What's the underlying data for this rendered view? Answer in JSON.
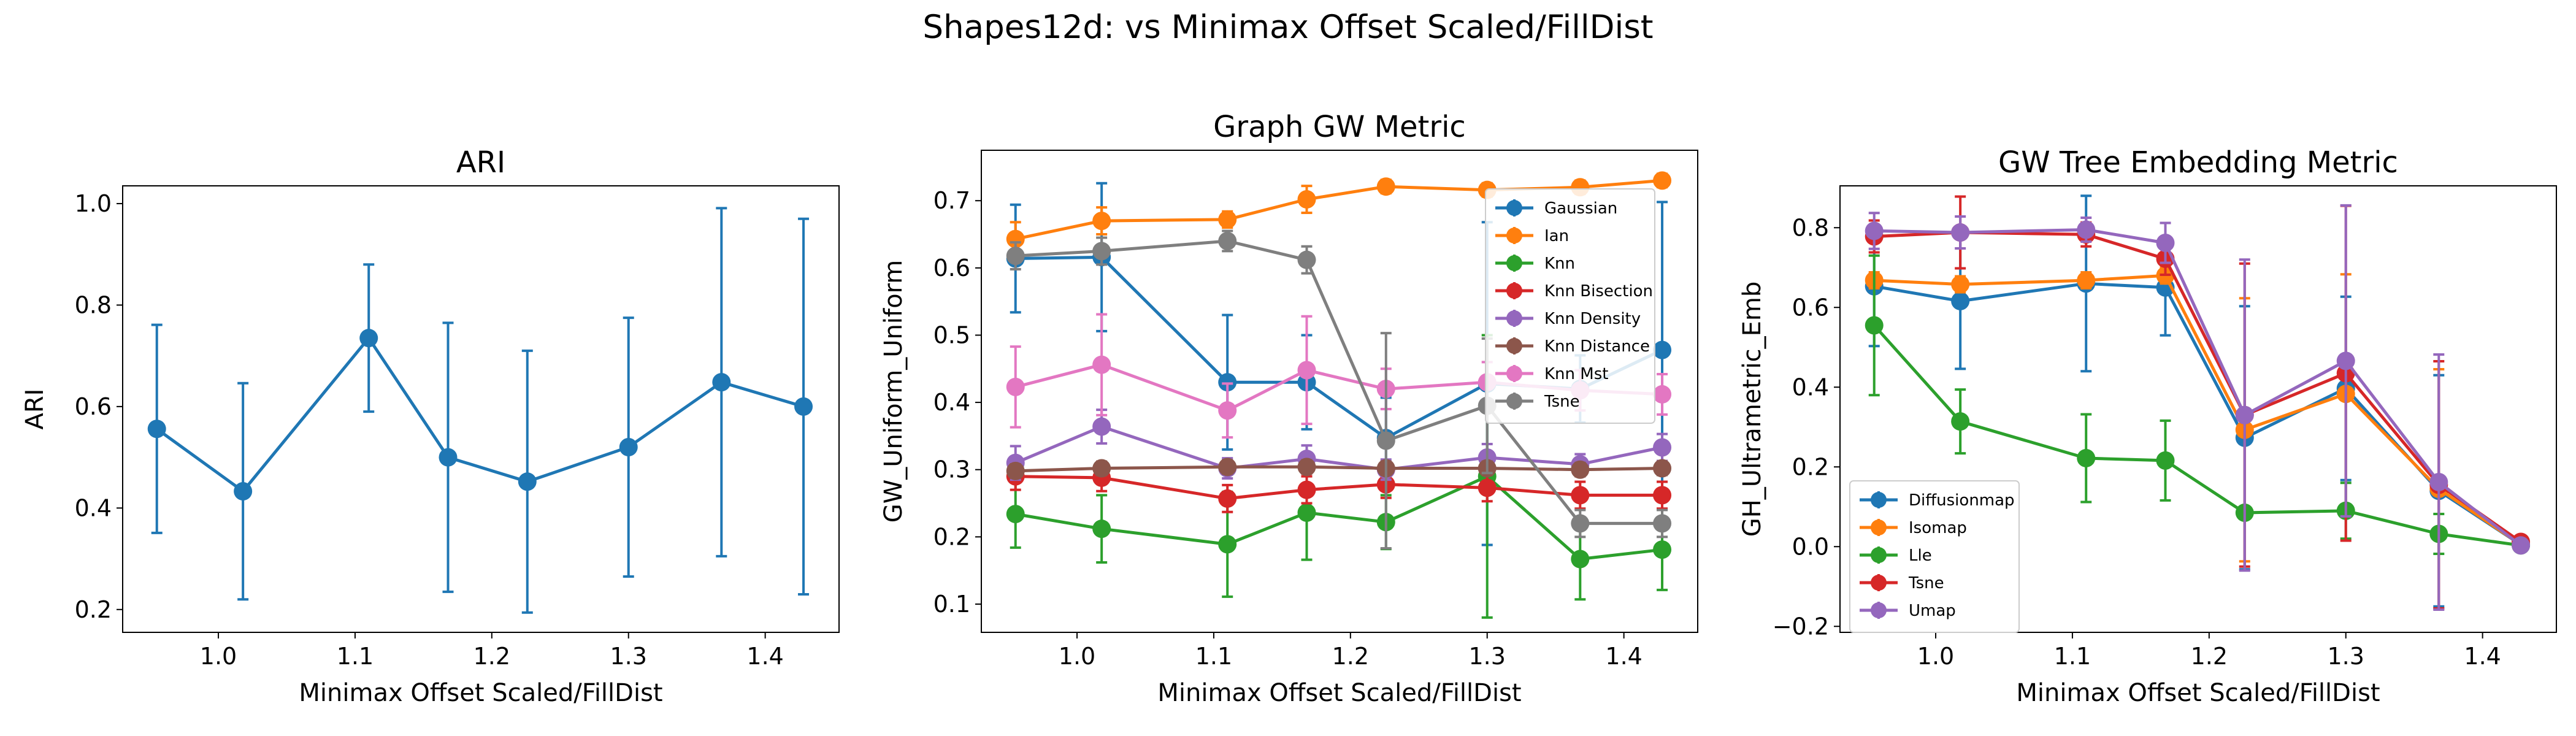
{
  "figure": {
    "suptitle": "Shapes12d: vs Minimax Offset Scaled/FillDist"
  },
  "chart_data": [
    {
      "type": "line",
      "title": "ARI",
      "xlabel": "Minimax Offset Scaled/FillDist",
      "ylabel": "ARI",
      "xlim": [
        0.93,
        1.454
      ],
      "ylim": [
        0.155,
        1.035
      ],
      "xticks": [
        1.0,
        1.1,
        1.2,
        1.3,
        1.4
      ],
      "yticks": [
        0.2,
        0.4,
        0.6,
        0.8,
        1.0
      ],
      "legend": "none",
      "x": [
        0.955,
        1.018,
        1.11,
        1.168,
        1.226,
        1.3,
        1.368,
        1.428
      ],
      "series": [
        {
          "color": "#1f77b4",
          "values": [
            0.556,
            0.433,
            0.735,
            0.5,
            0.452,
            0.52,
            0.648,
            0.6
          ],
          "errors": [
            0.205,
            0.213,
            0.145,
            0.265,
            0.258,
            0.255,
            0.343,
            0.37
          ]
        }
      ]
    },
    {
      "type": "line",
      "title": "Graph GW Metric",
      "xlabel": "Minimax Offset Scaled/FillDist",
      "ylabel": "GW_Uniform_Uniform",
      "xlim": [
        0.93,
        1.454
      ],
      "ylim": [
        0.058,
        0.775
      ],
      "xticks": [
        1.0,
        1.1,
        1.2,
        1.3,
        1.4
      ],
      "yticks": [
        0.1,
        0.2,
        0.3,
        0.4,
        0.5,
        0.6,
        0.7
      ],
      "legend": "top-right",
      "x": [
        0.955,
        1.018,
        1.11,
        1.168,
        1.226,
        1.3,
        1.368,
        1.428
      ],
      "series": [
        {
          "name": "Gaussian",
          "color": "#1f77b4",
          "values": [
            0.614,
            0.616,
            0.43,
            0.43,
            0.347,
            0.428,
            0.42,
            0.478
          ],
          "errors": [
            0.08,
            0.11,
            0.1,
            0.07,
            0.06,
            0.24,
            0.05,
            0.22
          ]
        },
        {
          "name": "Ian",
          "color": "#ff7f0e",
          "values": [
            0.643,
            0.67,
            0.672,
            0.702,
            0.721,
            0.716,
            0.72,
            0.73
          ],
          "errors": [
            0.025,
            0.02,
            0.012,
            0.02,
            0.01,
            0.01,
            0.01,
            0.01
          ]
        },
        {
          "name": "Knn",
          "color": "#2ca02c",
          "values": [
            0.234,
            0.212,
            0.189,
            0.236,
            0.222,
            0.29,
            0.167,
            0.181
          ],
          "errors": [
            0.05,
            0.05,
            0.078,
            0.07,
            0.04,
            0.21,
            0.06,
            0.06
          ]
        },
        {
          "name": "Knn Bisection",
          "color": "#d62728",
          "values": [
            0.29,
            0.288,
            0.257,
            0.27,
            0.278,
            0.273,
            0.262,
            0.262
          ],
          "errors": [
            0.02,
            0.02,
            0.02,
            0.02,
            0.02,
            0.02,
            0.02,
            0.02
          ]
        },
        {
          "name": "Knn Density",
          "color": "#9467bd",
          "values": [
            0.31,
            0.364,
            0.302,
            0.316,
            0.3,
            0.318,
            0.308,
            0.333
          ],
          "errors": [
            0.025,
            0.025,
            0.015,
            0.02,
            0.015,
            0.02,
            0.015,
            0.02
          ]
        },
        {
          "name": "Knn Distance",
          "color": "#8c564b",
          "values": [
            0.298,
            0.302,
            0.304,
            0.304,
            0.302,
            0.302,
            0.3,
            0.302
          ],
          "errors": [
            0.01,
            0.01,
            0.01,
            0.01,
            0.01,
            0.01,
            0.01,
            0.01
          ]
        },
        {
          "name": "Knn Mst",
          "color": "#e377c2",
          "values": [
            0.423,
            0.456,
            0.388,
            0.448,
            0.42,
            0.43,
            0.418,
            0.412
          ],
          "errors": [
            0.06,
            0.075,
            0.04,
            0.08,
            0.03,
            0.03,
            0.03,
            0.03
          ]
        },
        {
          "name": "Tsne",
          "color": "#7f7f7f",
          "values": [
            0.618,
            0.625,
            0.64,
            0.612,
            0.343,
            0.395,
            0.22,
            0.22
          ],
          "errors": [
            0.02,
            0.02,
            0.015,
            0.02,
            0.16,
            0.1,
            0.02,
            0.02
          ]
        }
      ]
    },
    {
      "type": "line",
      "title": "GW Tree Embedding Metric",
      "xlabel": "Minimax Offset Scaled/FillDist",
      "ylabel": "GH_Ultrametric_Emb",
      "xlim": [
        0.93,
        1.454
      ],
      "ylim": [
        -0.215,
        0.905
      ],
      "xticks": [
        1.0,
        1.1,
        1.2,
        1.3,
        1.4
      ],
      "yticks": [
        -0.2,
        0.0,
        0.2,
        0.4,
        0.6,
        0.8
      ],
      "legend": "bottom-left",
      "x": [
        0.955,
        1.018,
        1.11,
        1.168,
        1.226,
        1.3,
        1.368,
        1.428
      ],
      "series": [
        {
          "name": "Diffusionmap",
          "color": "#1f77b4",
          "values": [
            0.653,
            0.616,
            0.66,
            0.65,
            0.273,
            0.397,
            0.14,
            0.005
          ],
          "errors": [
            0.15,
            0.17,
            0.22,
            0.12,
            0.33,
            0.23,
            0.29,
            0.01
          ]
        },
        {
          "name": "Isomap",
          "color": "#ff7f0e",
          "values": [
            0.668,
            0.658,
            0.668,
            0.68,
            0.293,
            0.383,
            0.145,
            0.005
          ],
          "errors": [
            0.02,
            0.02,
            0.02,
            0.02,
            0.33,
            0.3,
            0.3,
            0.01
          ]
        },
        {
          "name": "Lle",
          "color": "#2ca02c",
          "values": [
            0.555,
            0.314,
            0.222,
            0.216,
            0.085,
            0.09,
            0.032,
            0.003
          ],
          "errors": [
            0.175,
            0.08,
            0.11,
            0.1,
            0.01,
            0.07,
            0.05,
            0.01
          ]
        },
        {
          "name": "Tsne",
          "color": "#d62728",
          "values": [
            0.778,
            0.788,
            0.783,
            0.722,
            0.33,
            0.435,
            0.155,
            0.012
          ],
          "errors": [
            0.04,
            0.09,
            0.03,
            0.04,
            0.38,
            0.42,
            0.31,
            0.01
          ]
        },
        {
          "name": "Umap",
          "color": "#9467bd",
          "values": [
            0.792,
            0.788,
            0.795,
            0.762,
            0.33,
            0.466,
            0.162,
            0.003
          ],
          "errors": [
            0.045,
            0.04,
            0.03,
            0.05,
            0.39,
            0.39,
            0.32,
            0.01
          ]
        }
      ]
    }
  ]
}
